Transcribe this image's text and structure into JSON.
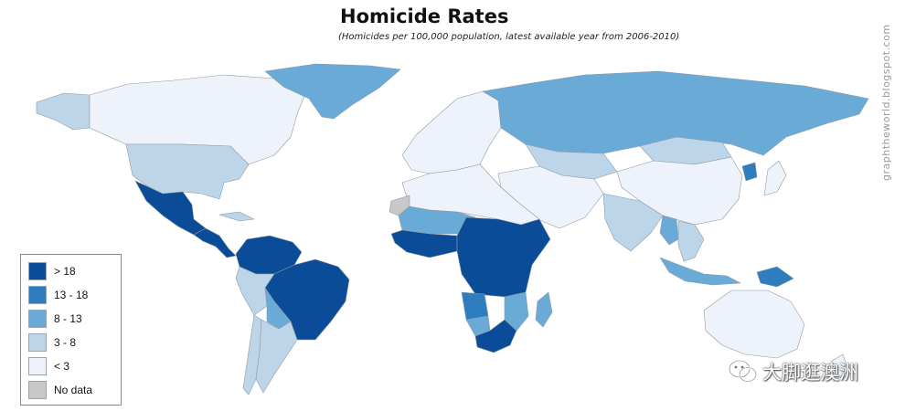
{
  "title": "Homicide Rates",
  "subtitle": "(Homicides per 100,000 population, latest available year from 2006-2010)",
  "watermark_url": "graphtheworld.blogspot.com",
  "watermark_wechat": "大脚逛澳洲",
  "colors": {
    "gt18": "#0a4c98",
    "13_18": "#2e7dbf",
    "8_13": "#6aaad6",
    "3_8": "#bdd5e8",
    "lt3": "#eef3fb",
    "nodata": "#c8c8c8"
  },
  "legend": [
    {
      "label": "> 18",
      "color": "#0a4c98"
    },
    {
      "label": "13 - 18",
      "color": "#2e7dbf"
    },
    {
      "label": "8 - 13",
      "color": "#6aaad6"
    },
    {
      "label": "3 - 8",
      "color": "#bdd5e8"
    },
    {
      "label": "< 3",
      "color": "#eef3fb"
    },
    {
      "label": "No data",
      "color": "#c8c8c8"
    }
  ],
  "regions": [
    {
      "name": "Alaska",
      "bin": "3_8"
    },
    {
      "name": "Canada",
      "bin": "lt3"
    },
    {
      "name": "United States",
      "bin": "3_8"
    },
    {
      "name": "Greenland",
      "bin": "8_13"
    },
    {
      "name": "Mexico",
      "bin": "gt18"
    },
    {
      "name": "Central America",
      "bin": "gt18"
    },
    {
      "name": "Cuba",
      "bin": "3_8"
    },
    {
      "name": "Venezuela",
      "bin": "gt18"
    },
    {
      "name": "Colombia",
      "bin": "gt18"
    },
    {
      "name": "Brazil",
      "bin": "gt18"
    },
    {
      "name": "Peru",
      "bin": "3_8"
    },
    {
      "name": "Bolivia",
      "bin": "8_13"
    },
    {
      "name": "Chile",
      "bin": "3_8"
    },
    {
      "name": "Argentina",
      "bin": "3_8"
    },
    {
      "name": "Europe",
      "bin": "lt3"
    },
    {
      "name": "Russia",
      "bin": "8_13"
    },
    {
      "name": "Kazakhstan",
      "bin": "3_8"
    },
    {
      "name": "China",
      "bin": "lt3"
    },
    {
      "name": "Mongolia",
      "bin": "3_8"
    },
    {
      "name": "North Korea",
      "bin": "13_18"
    },
    {
      "name": "Japan",
      "bin": "lt3"
    },
    {
      "name": "Middle East",
      "bin": "lt3"
    },
    {
      "name": "India",
      "bin": "3_8"
    },
    {
      "name": "Myanmar",
      "bin": "8_13"
    },
    {
      "name": "Southeast Asia",
      "bin": "3_8"
    },
    {
      "name": "Indonesia",
      "bin": "8_13"
    },
    {
      "name": "Papua New Guinea",
      "bin": "13_18"
    },
    {
      "name": "Australia",
      "bin": "lt3"
    },
    {
      "name": "New Zealand",
      "bin": "lt3"
    },
    {
      "name": "North Africa",
      "bin": "lt3"
    },
    {
      "name": "Western Sahara",
      "bin": "nodata"
    },
    {
      "name": "Sahel",
      "bin": "8_13"
    },
    {
      "name": "West Africa",
      "bin": "gt18"
    },
    {
      "name": "Central and East Africa",
      "bin": "gt18"
    },
    {
      "name": "Angola",
      "bin": "13_18"
    },
    {
      "name": "Namibia",
      "bin": "8_13"
    },
    {
      "name": "South Africa",
      "bin": "gt18"
    },
    {
      "name": "Mozambique",
      "bin": "8_13"
    },
    {
      "name": "Madagascar",
      "bin": "8_13"
    }
  ]
}
